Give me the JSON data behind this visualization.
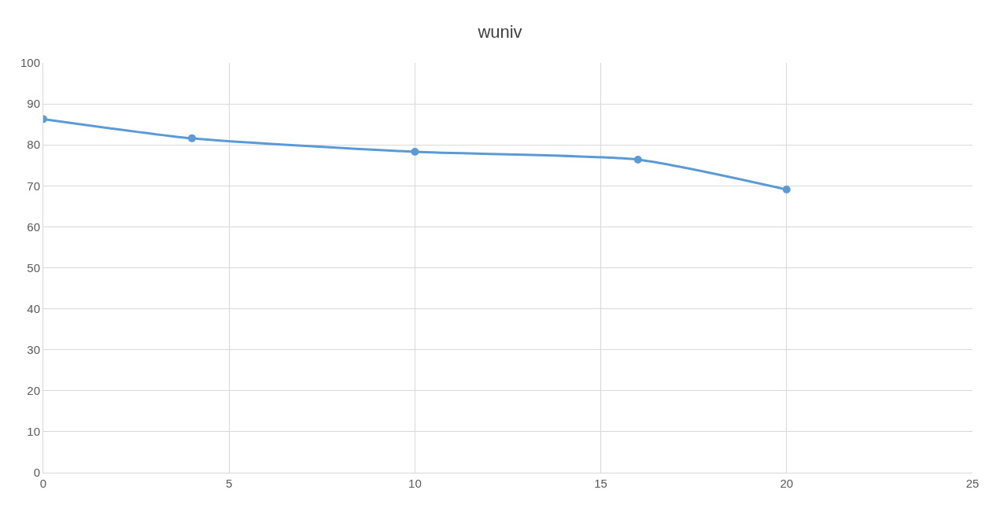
{
  "chart_data": {
    "type": "line",
    "title": "wuniv",
    "x": [
      0,
      4,
      10,
      16,
      20
    ],
    "series": [
      {
        "color": "#5b9bd5",
        "values": [
          86.3,
          81.6,
          78.3,
          76.4,
          69.1
        ]
      }
    ],
    "xlim": [
      0,
      25
    ],
    "xticks": [
      0,
      5,
      10,
      15,
      20,
      25
    ],
    "ylim": [
      0,
      100
    ],
    "yticks": [
      0,
      10,
      20,
      30,
      40,
      50,
      60,
      70,
      80,
      90,
      100
    ],
    "grid": true,
    "marker": "circle",
    "line_style": "solid"
  }
}
